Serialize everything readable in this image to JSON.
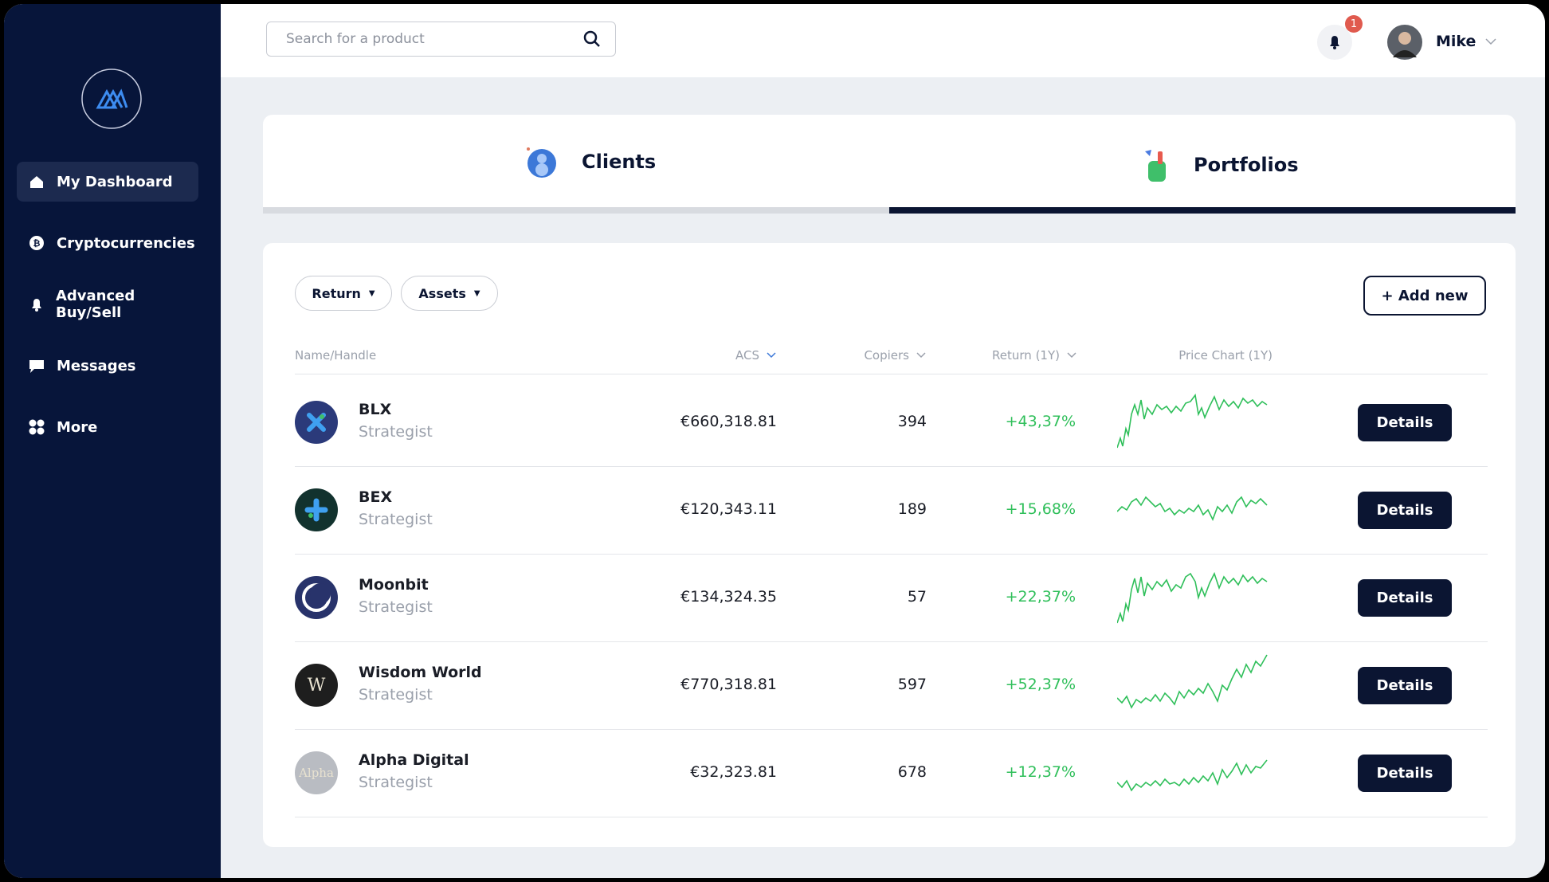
{
  "search": {
    "placeholder": "Search for a product"
  },
  "notifications": {
    "count": "1"
  },
  "user": {
    "name": "Mike"
  },
  "nav": [
    {
      "label": "My Dashboard"
    },
    {
      "label": "Cryptocurrencies"
    },
    {
      "label": "Advanced Buy/Sell"
    },
    {
      "label": "Messages"
    },
    {
      "label": "More"
    }
  ],
  "tabs": [
    {
      "label": "Clients"
    },
    {
      "label": "Portfolios"
    }
  ],
  "filters": [
    "Return",
    "Assets"
  ],
  "add_button": "+ Add new",
  "table": {
    "headers": [
      "Name/Handle",
      "ACS",
      "Copiers",
      "Return (1Y)",
      "Price Chart (1Y)"
    ],
    "rows": [
      {
        "name": "BLX",
        "handle": "Strategist",
        "acs": "€660,318.81",
        "copiers": 394,
        "return": "+43,37%",
        "action": "Details"
      },
      {
        "name": "BEX",
        "handle": "Strategist",
        "acs": "€120,343.11",
        "copiers": 189,
        "return": "+15,68%",
        "action": "Details"
      },
      {
        "name": "Moonbit",
        "handle": "Strategist",
        "acs": "€134,324.35",
        "copiers": 57,
        "return": "+22,37%",
        "action": "Details"
      },
      {
        "logo": "W",
        "name": "Wisdom World",
        "handle": "Strategist",
        "acs": "€770,318.81",
        "copiers": 597,
        "return": "+52,37%",
        "action": "Details"
      },
      {
        "logo": "Alpha",
        "name": "Alpha Digital",
        "handle": "Strategist",
        "acs": "€32,323.81",
        "copiers": 678,
        "return": "+12,37%",
        "action": "Details"
      }
    ]
  }
}
